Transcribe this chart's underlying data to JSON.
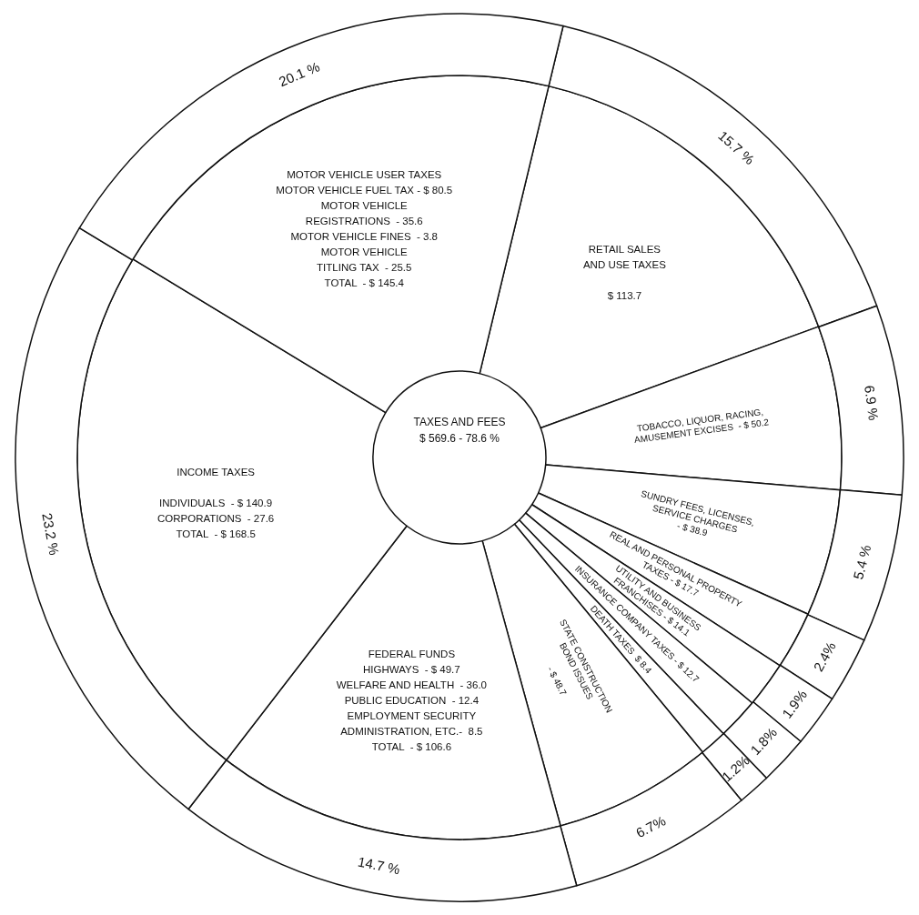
{
  "chart_data": {
    "type": "donut",
    "categories": [
      "RETAIL SALES\nAND USE TAXES\n\n$ 113.7",
      "TOBACCO, LIQUOR, RACING,\nAMUSEMENT EXCISES  - $ 50.2",
      "SUNDRY FEES, LICENSES,\nSERVICE CHARGES\n- $ 38.9",
      "REAL AND PERSONAL PROPERTY\nTAXES - $ 17.7",
      "UTILITY AND BUSINESS\nFRANCHISES - $ 14.1",
      "INSURANCE COMPANY TAXES - $ 12.7",
      "DEATH TAXES  $ 8.4",
      "STATE CONSTRUCTION\nBOND ISSUES\n\n- $ 48.7",
      "FEDERAL FUNDS\nHIGHWAYS  - $ 49.7\nWELFARE AND HEALTH  - 36.0\nPUBLIC EDUCATION  - 12.4\nEMPLOYMENT SECURITY\nADMINISTRATION, ETC.-  8.5\nTOTAL  - $ 106.6",
      "INCOME TAXES\n\nINDIVIDUALS  - $ 140.9\nCORPORATIONS  - 27.6\nTOTAL  - $ 168.5",
      "MOTOR VEHICLE USER TAXES\nMOTOR VEHICLE FUEL TAX - $ 80.5\nMOTOR VEHICLE\nREGISTRATIONS  - 35.6\nMOTOR VEHICLE FINES  - 3.8\nMOTOR VEHICLE\nTITLING TAX  - 25.5\nTOTAL  - $ 145.4"
    ],
    "series": [
      {
        "values": [
          113.7,
          50.2,
          38.9,
          17.7,
          14.1,
          12.7,
          8.4,
          48.7,
          106.6,
          168.5,
          145.4
        ]
      },
      {
        "values": [
          15.7,
          6.9,
          5.4,
          2.4,
          1.9,
          1.8,
          1.2,
          6.7,
          14.7,
          23.2,
          20.1
        ],
        "value_labels": [
          "15.7 %",
          "6.9 %",
          "5.4 %",
          "2.4%",
          "1.9%",
          "1.8%",
          "1.2%",
          "6.7%",
          "14.7 %",
          "23.2 %",
          "20.1 %"
        ]
      }
    ],
    "colors": [
      "#ffffff",
      "#ffffff",
      "#ffffff",
      "#ffffff",
      "#ffffff",
      "#ffffff",
      "#ffffff",
      "#ffffff",
      "#ffffff",
      "#ffffff",
      "#ffffff"
    ],
    "annotations": [
      "TAXES AND FEES\n$ 569.6 - 78.6 %"
    ],
    "legend": false
  }
}
